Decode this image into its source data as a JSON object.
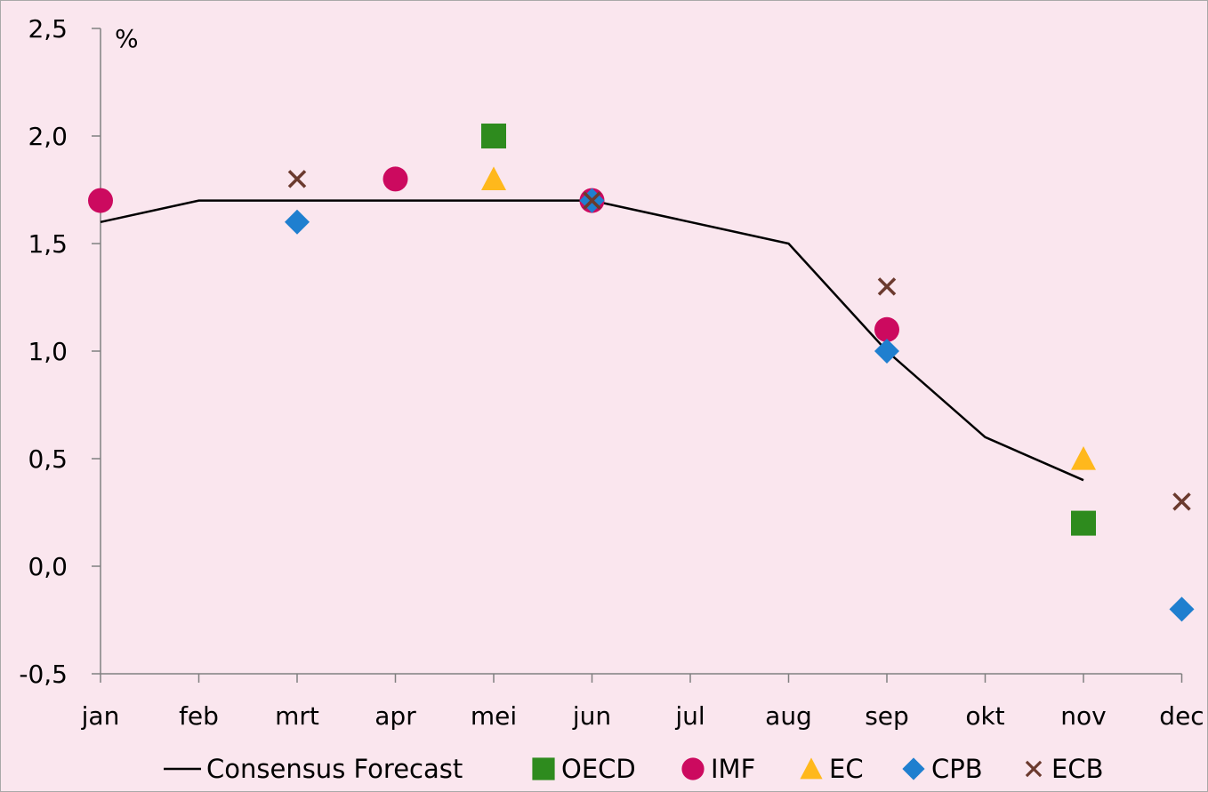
{
  "chart_data": {
    "type": "scatter",
    "unit_label": "%",
    "categories": [
      "jan",
      "feb",
      "mrt",
      "apr",
      "mei",
      "jun",
      "jul",
      "aug",
      "sep",
      "okt",
      "nov",
      "dec"
    ],
    "ylim": [
      -0.5,
      2.5
    ],
    "yticks": [
      -0.5,
      0.0,
      0.5,
      1.0,
      1.5,
      2.0,
      2.5
    ],
    "ytick_labels": [
      "-0,5",
      "0,0",
      "0,5",
      "1,0",
      "1,5",
      "2,0",
      "2,5"
    ],
    "grid": false,
    "legend_position": "bottom",
    "series": [
      {
        "name": "Consensus Forecast",
        "kind": "line",
        "color": "#000000",
        "points": [
          [
            "jan",
            1.6
          ],
          [
            "feb",
            1.7
          ],
          [
            "mrt",
            1.7
          ],
          [
            "apr",
            1.7
          ],
          [
            "mei",
            1.7
          ],
          [
            "jun",
            1.7
          ],
          [
            "jul",
            1.6
          ],
          [
            "aug",
            1.5
          ],
          [
            "sep",
            1.0
          ],
          [
            "okt",
            0.6
          ],
          [
            "nov",
            0.4
          ]
        ]
      },
      {
        "name": "OECD",
        "kind": "marker",
        "marker": "square",
        "color": "#2e8b1e",
        "points": [
          [
            "mei",
            2.0
          ],
          [
            "nov",
            0.2
          ]
        ]
      },
      {
        "name": "IMF",
        "kind": "marker",
        "marker": "circle",
        "color": "#cc0a5f",
        "points": [
          [
            "jan",
            1.7
          ],
          [
            "apr",
            1.8
          ],
          [
            "jun",
            1.7
          ],
          [
            "sep",
            1.1
          ]
        ]
      },
      {
        "name": "EC",
        "kind": "marker",
        "marker": "triangle",
        "color": "#ffb81c",
        "points": [
          [
            "mei",
            1.8
          ],
          [
            "nov",
            0.5
          ]
        ]
      },
      {
        "name": "CPB",
        "kind": "marker",
        "marker": "diamond",
        "color": "#1f7fcf",
        "points": [
          [
            "mrt",
            1.6
          ],
          [
            "jun",
            1.7
          ],
          [
            "sep",
            1.0
          ],
          [
            "dec",
            -0.2
          ]
        ]
      },
      {
        "name": "ECB",
        "kind": "marker",
        "marker": "cross",
        "color": "#6b3a2e",
        "points": [
          [
            "mrt",
            1.8
          ],
          [
            "jun",
            1.7
          ],
          [
            "sep",
            1.3
          ],
          [
            "dec",
            0.3
          ]
        ]
      }
    ]
  }
}
